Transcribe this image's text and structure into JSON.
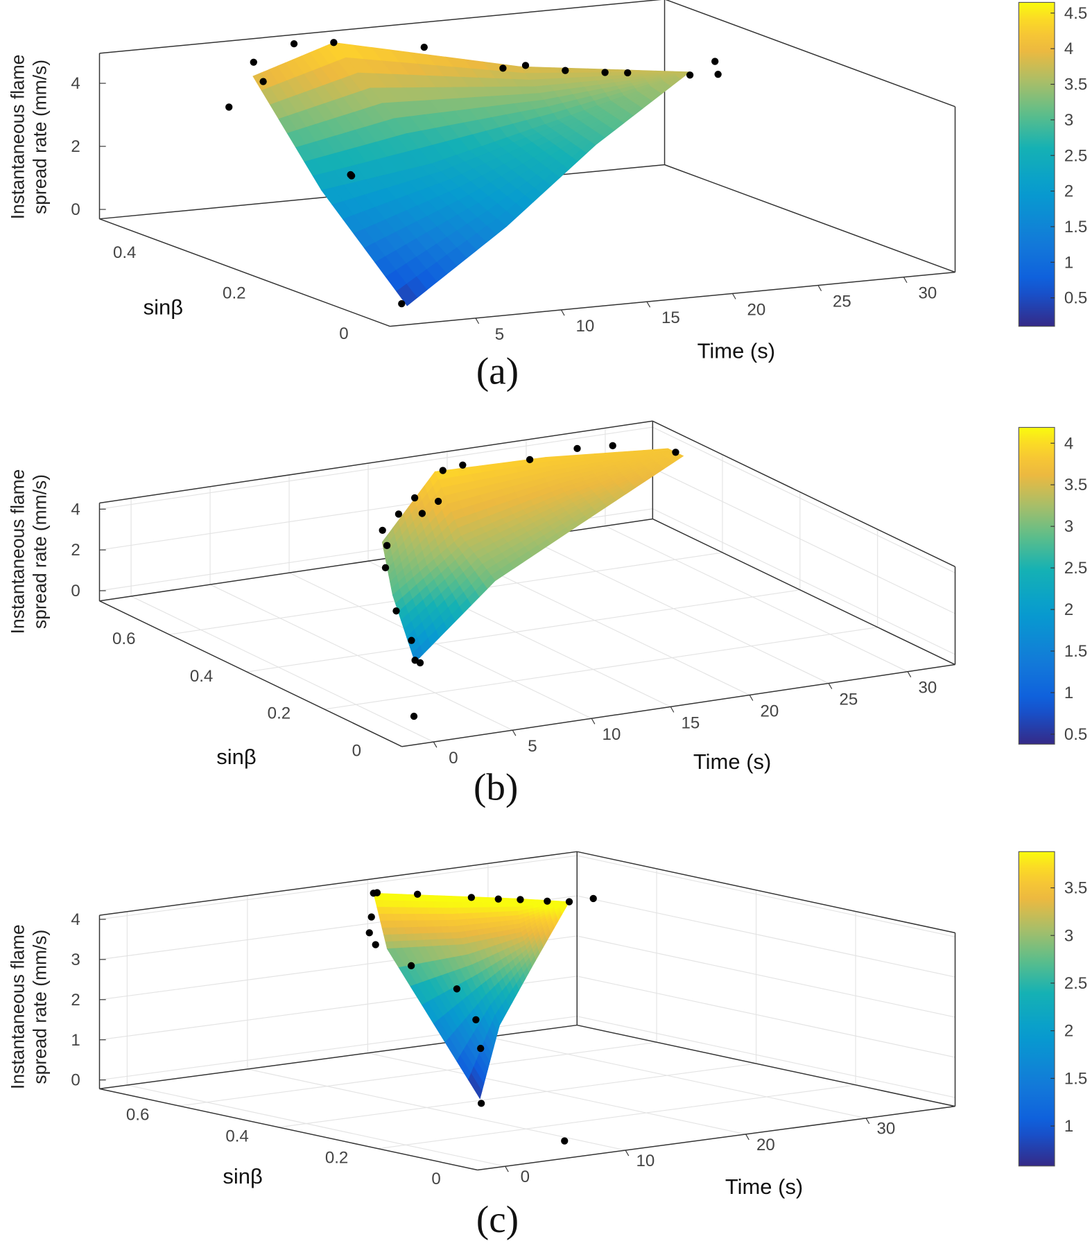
{
  "colors": {
    "axis": "#333333",
    "grid": "#e3e3e3",
    "points": "#000000",
    "colormap": "parula"
  },
  "chart_data": [
    {
      "type": "surface",
      "caption": "(a)",
      "xlabel": "Time (s)",
      "ylabel": "sinβ",
      "zlabel": [
        "Instantaneous flame",
        "spread rate (mm/s)"
      ],
      "xlim": [
        0,
        33
      ],
      "ylim": [
        0,
        0.53
      ],
      "zlim": [
        -0.3,
        4.95
      ],
      "xticks": [
        "5",
        "10",
        "15",
        "20",
        "25",
        "30"
      ],
      "yticks": [
        "0",
        "0.2",
        "0.4"
      ],
      "zticks": [
        "0",
        "2",
        "4"
      ],
      "grid": false,
      "colorbar": {
        "range": [
          0.1,
          4.65
        ],
        "ticks": [
          "0.5",
          "1",
          "1.5",
          "2",
          "2.5",
          "3",
          "3.5",
          "4",
          "4.5"
        ]
      },
      "surface_mesh": [
        [
          [
            8,
            0.5,
            4.0
          ],
          [
            14,
            0.54,
            4.5
          ],
          [
            22,
            0.45,
            3.9
          ],
          [
            30,
            0.39,
            3.7
          ]
        ],
        [
          [
            4,
            0.25,
            2.2
          ],
          [
            12,
            0.3,
            2.3
          ],
          [
            21,
            0.35,
            2.9
          ],
          [
            30,
            0.39,
            3.7
          ]
        ],
        [
          [
            1,
            0.0,
            0.3
          ],
          [
            10,
            0.1,
            1.7
          ],
          [
            20,
            0.25,
            2.8
          ],
          [
            30,
            0.39,
            3.7
          ]
        ]
      ],
      "points": [
        [
          1,
          0.01,
          0.3
        ],
        [
          7.3,
          0.3,
          2.2
        ],
        [
          8,
          0.32,
          2.0
        ],
        [
          8.6,
          0.5,
          3.8
        ],
        [
          9,
          0.53,
          4.2
        ],
        [
          12,
          0.55,
          4.5
        ],
        [
          14,
          0.54,
          4.5
        ],
        [
          18,
          0.5,
          4.4
        ],
        [
          21,
          0.45,
          3.9
        ],
        [
          22,
          0.44,
          4.0
        ],
        [
          24,
          0.43,
          3.8
        ],
        [
          26,
          0.42,
          3.7
        ],
        [
          27,
          0.41,
          3.7
        ],
        [
          30,
          0.39,
          3.6
        ],
        [
          30.5,
          0.36,
          4.2
        ],
        [
          31,
          0.37,
          3.7
        ],
        [
          5,
          0.45,
          3.5
        ]
      ]
    },
    {
      "type": "surface",
      "caption": "(b)",
      "xlabel": "Time (s)",
      "ylabel": "sinβ",
      "zlabel": [
        "Instantaneous flame",
        "spread rate (mm/s)"
      ],
      "xlim": [
        -2,
        33
      ],
      "ylim": [
        0,
        0.78
      ],
      "zlim": [
        -0.5,
        4.3
      ],
      "xticks": [
        "0",
        "5",
        "10",
        "15",
        "20",
        "25",
        "30"
      ],
      "yticks": [
        "0",
        "0.2",
        "0.4",
        "0.6"
      ],
      "zticks": [
        "0",
        "2",
        "4"
      ],
      "grid": true,
      "colorbar": {
        "range": [
          0.38,
          4.19
        ],
        "ticks": [
          "0.5",
          "1",
          "1.5",
          "2",
          "2.5",
          "3",
          "3.5",
          "4"
        ]
      },
      "surface_mesh": [
        [
          [
            10,
            0.54,
            3.2
          ],
          [
            18,
            0.73,
            4.0
          ],
          [
            25,
            0.73,
            3.9
          ],
          [
            32,
            0.7,
            3.8
          ]
        ],
        [
          [
            6,
            0.35,
            2.8
          ],
          [
            14,
            0.5,
            3.4
          ],
          [
            23,
            0.6,
            3.6
          ],
          [
            32,
            0.68,
            3.8
          ]
        ],
        [
          [
            3,
            0.17,
            1.5
          ],
          [
            12,
            0.33,
            3.0
          ],
          [
            22,
            0.5,
            3.3
          ],
          [
            32,
            0.66,
            3.8
          ]
        ]
      ],
      "points": [
        [
          0.6,
          0.075,
          0
        ],
        [
          3.2,
          0.165,
          1.5
        ],
        [
          3,
          0.17,
          1.6
        ],
        [
          4,
          0.22,
          2.0
        ],
        [
          5,
          0.3,
          2.6
        ],
        [
          8,
          0.45,
          3.0
        ],
        [
          10.3,
          0.54,
          3.0
        ],
        [
          11,
          0.58,
          3.3
        ],
        [
          13,
          0.62,
          3.5
        ],
        [
          15,
          0.66,
          3.7
        ],
        [
          18.5,
          0.73,
          4.0
        ],
        [
          20,
          0.74,
          4.0
        ],
        [
          24,
          0.73,
          3.9
        ],
        [
          27,
          0.73,
          4.1
        ],
        [
          29,
          0.72,
          4.1
        ],
        [
          32,
          0.68,
          3.8
        ],
        [
          14,
          0.6,
          3.6
        ],
        [
          16,
          0.64,
          3.6
        ]
      ]
    },
    {
      "type": "surface",
      "caption": "(c)",
      "xlabel": "Time (s)",
      "ylabel": "sinβ",
      "zlabel": [
        "Instantaneous flame",
        "spread rate (mm/s)"
      ],
      "xlim": [
        -2.3,
        37.4
      ],
      "ylim": [
        0,
        0.76
      ],
      "zlim": [
        -0.22,
        4.1
      ],
      "xticks": [
        "0",
        "10",
        "20",
        "30"
      ],
      "yticks": [
        "0",
        "0.2",
        "0.4",
        "0.6"
      ],
      "zticks": [
        "0",
        "1",
        "2",
        "3",
        "4"
      ],
      "grid": true,
      "colorbar": {
        "range": [
          0.58,
          3.88
        ],
        "ticks": [
          "1",
          "1.5",
          "2",
          "2.5",
          "3",
          "3.5"
        ]
      },
      "surface_mesh": [
        [
          [
            18,
            0.7,
            4.0
          ],
          [
            21,
            0.63,
            4.0
          ],
          [
            24,
            0.56,
            4.0
          ],
          [
            26,
            0.5,
            4.0
          ]
        ],
        [
          [
            15,
            0.6,
            3.0
          ],
          [
            18,
            0.52,
            3.2
          ],
          [
            22,
            0.5,
            3.4
          ],
          [
            26,
            0.5,
            4.0
          ]
        ],
        [
          [
            7,
            0.22,
            0.6
          ],
          [
            14,
            0.35,
            1.8
          ],
          [
            20,
            0.43,
            2.8
          ],
          [
            26,
            0.5,
            4.0
          ]
        ]
      ],
      "points": [
        [
          7,
          0.05,
          0
        ],
        [
          6.9,
          0.215,
          0.5
        ],
        [
          15.2,
          0.417,
          1.0
        ],
        [
          17,
          0.47,
          1.5
        ],
        [
          18.6,
          0.547,
          2.0
        ],
        [
          17,
          0.6,
          2.5
        ],
        [
          15.4,
          0.633,
          3.0
        ],
        [
          16,
          0.66,
          3.2
        ],
        [
          17,
          0.68,
          3.5
        ],
        [
          18,
          0.7,
          4.0
        ],
        [
          18.3,
          0.7,
          4.0
        ],
        [
          20,
          0.66,
          4.0
        ],
        [
          22,
          0.6,
          4.0
        ],
        [
          23,
          0.57,
          4.0
        ],
        [
          24,
          0.55,
          4.0
        ],
        [
          25,
          0.52,
          4.0
        ],
        [
          26,
          0.5,
          4.0
        ],
        [
          28,
          0.5,
          4.0
        ]
      ]
    }
  ]
}
